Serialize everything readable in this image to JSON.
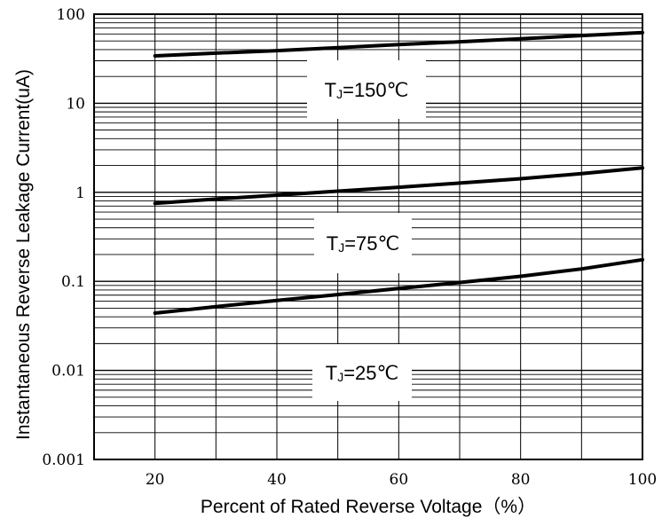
{
  "chart_data": {
    "type": "line",
    "title": "",
    "xlabel": "Percent of Rated Reverse Voltage（%）",
    "ylabel": "Instantaneous Reverse Leakage Current(uA)",
    "xlim": [
      10,
      100
    ],
    "ylim": [
      0.001,
      100
    ],
    "yscale": "log",
    "grid": true,
    "x_ticks": [
      20,
      40,
      60,
      80,
      100
    ],
    "x_tick_labels": [
      "20",
      "40",
      "60",
      "80",
      "100"
    ],
    "y_ticks": [
      0.001,
      0.01,
      0.1,
      1,
      10,
      100
    ],
    "y_tick_labels": [
      "0.001",
      "0.01",
      "0.1",
      "1",
      "10",
      "100"
    ],
    "series": [
      {
        "label_main": "T",
        "label_sub": "J",
        "label_rest": "=150℃",
        "x": [
          20,
          30,
          40,
          50,
          60,
          70,
          80,
          90,
          100
        ],
        "y": [
          34,
          36.5,
          39,
          42,
          45.5,
          49,
          53,
          57.5,
          62
        ]
      },
      {
        "label_main": "T",
        "label_sub": "J",
        "label_rest": "=75℃",
        "x": [
          20,
          30,
          40,
          50,
          60,
          70,
          80,
          90,
          100
        ],
        "y": [
          0.75,
          0.84,
          0.93,
          1.03,
          1.14,
          1.27,
          1.42,
          1.62,
          1.88
        ]
      },
      {
        "label_main": "T",
        "label_sub": "J",
        "label_rest": "=25℃",
        "x": [
          20,
          30,
          40,
          50,
          60,
          70,
          80,
          90,
          100
        ],
        "y": [
          0.044,
          0.052,
          0.061,
          0.071,
          0.083,
          0.097,
          0.114,
          0.138,
          0.175
        ]
      }
    ]
  }
}
